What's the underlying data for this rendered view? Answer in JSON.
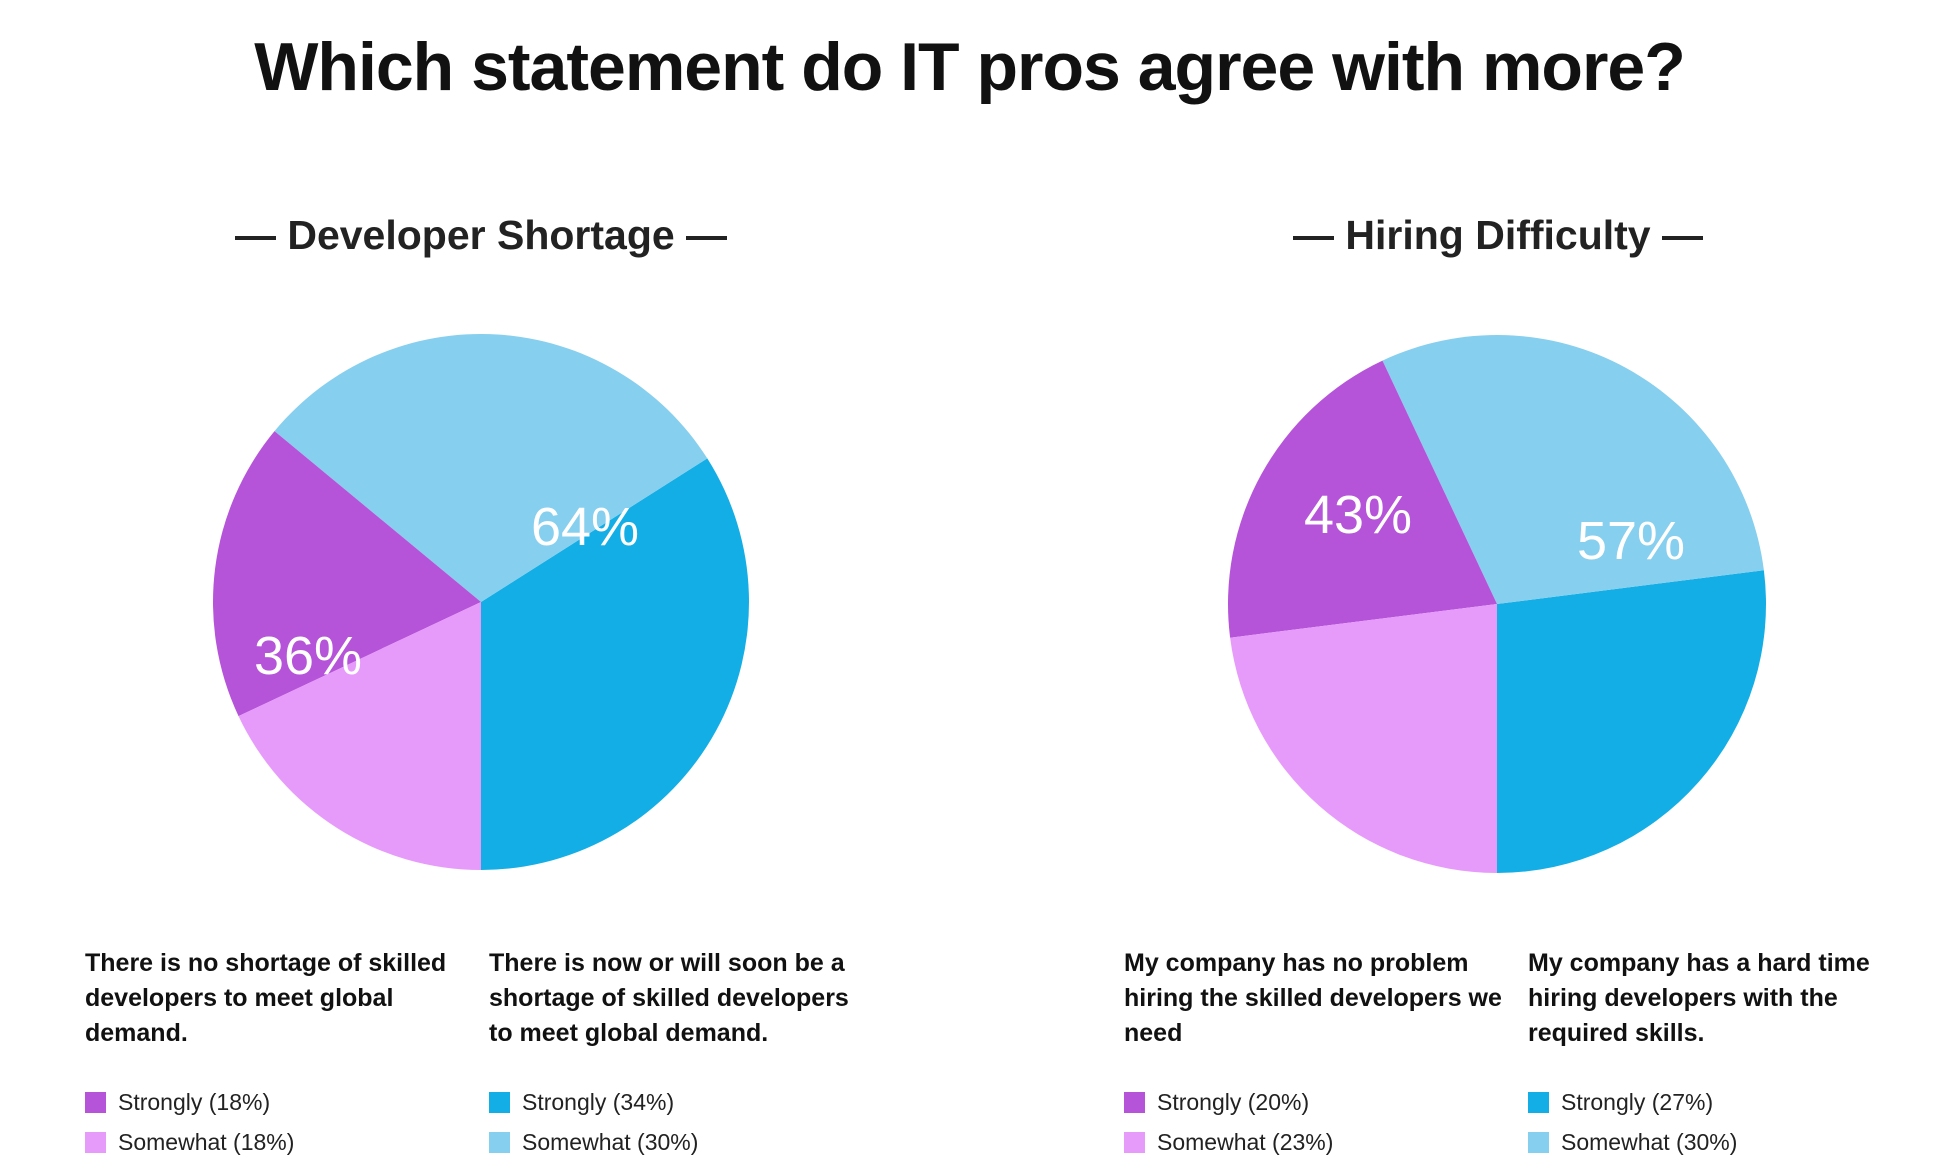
{
  "title": "Which statement do IT pros agree with more?",
  "colors": {
    "strongly_no": "#b553d9",
    "somewhat_no": "#e69bfa",
    "strongly_yes": "#13aee6",
    "somewhat_yes": "#86cfee"
  },
  "chart_data": [
    {
      "type": "pie",
      "title": "— Developer Shortage —",
      "slices": [
        {
          "name": "Strongly",
          "value": 34,
          "color": "#13aee6"
        },
        {
          "name": "Somewhat",
          "value": 30,
          "color": "#86cfee"
        },
        {
          "name": "Strongly",
          "value": 18,
          "color": "#b553d9"
        },
        {
          "name": "Somewhat",
          "value": 18,
          "color": "#e69bfa"
        }
      ],
      "group_labels": [
        "64%",
        "36%"
      ],
      "statements": [
        {
          "text": "There is no shortage of skilled developers to meet global demand.",
          "legend": [
            {
              "label": "Strongly (18%)",
              "color": "#b553d9"
            },
            {
              "label": "Somewhat (18%)",
              "color": "#e69bfa"
            }
          ]
        },
        {
          "text": "There is now or will soon be a shortage of skilled developers to meet global demand.",
          "legend": [
            {
              "label": "Strongly (34%)",
              "color": "#13aee6"
            },
            {
              "label": "Somewhat (30%)",
              "color": "#86cfee"
            }
          ]
        }
      ]
    },
    {
      "type": "pie",
      "title": "— Hiring Difficulty —",
      "slices": [
        {
          "name": "Strongly",
          "value": 27,
          "color": "#13aee6"
        },
        {
          "name": "Somewhat",
          "value": 30,
          "color": "#86cfee"
        },
        {
          "name": "Strongly",
          "value": 20,
          "color": "#b553d9"
        },
        {
          "name": "Somewhat",
          "value": 23,
          "color": "#e69bfa"
        }
      ],
      "group_labels": [
        "57%",
        "43%"
      ],
      "statements": [
        {
          "text": "My company has no problem hiring the skilled developers we need",
          "legend": [
            {
              "label": "Strongly (20%)",
              "color": "#b553d9"
            },
            {
              "label": "Somewhat (23%)",
              "color": "#e69bfa"
            }
          ]
        },
        {
          "text": "My company has a hard time hiring developers with the required skills.",
          "legend": [
            {
              "label": "Strongly (27%)",
              "color": "#13aee6"
            },
            {
              "label": "Somewhat (30%)",
              "color": "#86cfee"
            }
          ]
        }
      ]
    }
  ]
}
